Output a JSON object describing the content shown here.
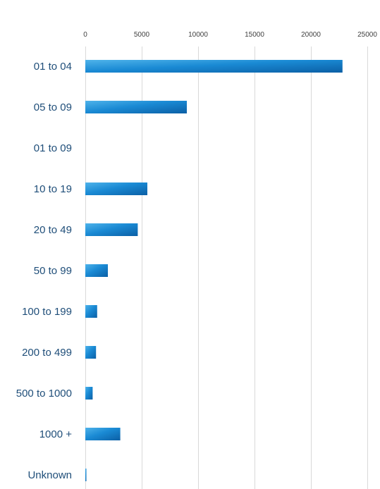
{
  "chart_data": {
    "type": "bar",
    "orientation": "horizontal",
    "categories": [
      "01 to 04",
      "05 to 09",
      "01 to 09",
      "10 to 19",
      "20 to 49",
      "50 to 99",
      "100 to 199",
      "200 to 499",
      "500 to 1000",
      "1000 +",
      "Unknown"
    ],
    "values": [
      22800,
      9000,
      0,
      5500,
      4650,
      2000,
      1050,
      950,
      650,
      3100,
      80
    ],
    "xlim": [
      0,
      25000
    ],
    "x_ticks": [
      0,
      5000,
      10000,
      15000,
      20000,
      25000
    ],
    "x_tick_labels": [
      "0",
      "5000",
      "10000",
      "15000",
      "20000",
      "25000"
    ],
    "x_axis_position": "top",
    "grid": true,
    "legend": "none",
    "title": "",
    "xlabel": "",
    "ylabel": "",
    "colors": {
      "bar_light": "#4fb3ea",
      "bar_mid": "#1a8ad4",
      "bar_dark": "#0b5fa5",
      "label": "#1f4e79",
      "tick": "#404040",
      "grid": "#d9d9d9"
    }
  }
}
